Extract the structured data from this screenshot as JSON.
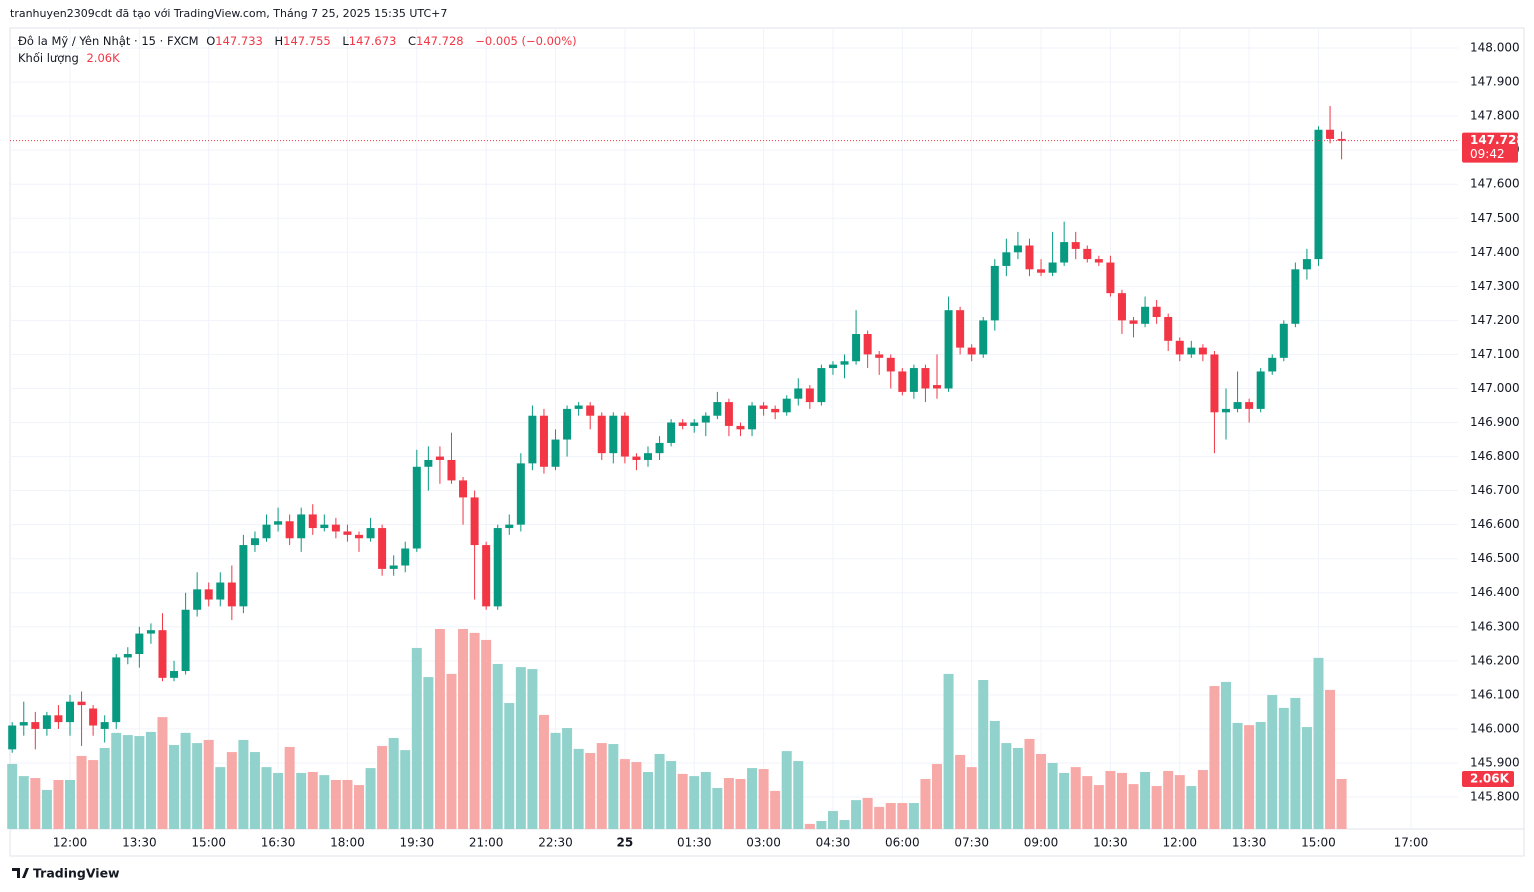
{
  "header": {
    "author_line": "tranhuyen2309cdt đã tạo với TradingView.com, Tháng 7 25, 2025 15:35 UTC+7",
    "symbol": "Đô la Mỹ / Yên Nhật · 15 · FXCM",
    "ohlc_letters": [
      "O",
      "H",
      "L",
      "C"
    ],
    "change": "−0.005 (−0.00%)",
    "volume_title": "Khối lượng",
    "brand": "TradingView"
  },
  "chart_data": {
    "type": "candlestick",
    "up_color": "#089981",
    "down_color": "#f23645",
    "up_volume_color": "#92d2cc",
    "down_volume_color": "#f7a9a7",
    "grid": true,
    "countdown": "09:42",
    "volume_label": "2.06K",
    "ylim": [
      145.706,
      148.053
    ],
    "yticks": [
      {
        "value": 148,
        "label": "148.000"
      },
      {
        "value": 147.9,
        "label": "147.900"
      },
      {
        "value": 147.8,
        "label": "147.800"
      },
      {
        "value": 147.7,
        "label": "147.700"
      },
      {
        "value": 147.6,
        "label": "147.600"
      },
      {
        "value": 147.5,
        "label": "147.500"
      },
      {
        "value": 147.4,
        "label": "147.400"
      },
      {
        "value": 147.3,
        "label": "147.300"
      },
      {
        "value": 147.2,
        "label": "147.200"
      },
      {
        "value": 147.1,
        "label": "147.100"
      },
      {
        "value": 147,
        "label": "147.000"
      },
      {
        "value": 146.9,
        "label": "146.900"
      },
      {
        "value": 146.8,
        "label": "146.800"
      },
      {
        "value": 146.7,
        "label": "146.700"
      },
      {
        "value": 146.6,
        "label": "146.600"
      },
      {
        "value": 146.5,
        "label": "146.500"
      },
      {
        "value": 146.4,
        "label": "146.400"
      },
      {
        "value": 146.3,
        "label": "146.300"
      },
      {
        "value": 146.2,
        "label": "146.200"
      },
      {
        "value": 146.1,
        "label": "146.100"
      },
      {
        "value": 146,
        "label": "146.000"
      },
      {
        "value": 145.9,
        "label": "145.900"
      },
      {
        "value": 145.8,
        "label": "145.800"
      }
    ],
    "xticks": [
      {
        "value": 5,
        "label": "12:00"
      },
      {
        "value": 11,
        "label": "13:30"
      },
      {
        "value": 17,
        "label": "15:00"
      },
      {
        "value": 23,
        "label": "16:30"
      },
      {
        "value": 29,
        "label": "18:00"
      },
      {
        "value": 35,
        "label": "19:30"
      },
      {
        "value": 41,
        "label": "21:00"
      },
      {
        "value": 47,
        "label": "22:30"
      },
      {
        "value": 53,
        "label": "25"
      },
      {
        "value": 59,
        "label": "01:30"
      },
      {
        "value": 65,
        "label": "03:00"
      },
      {
        "value": 71,
        "label": "04:30"
      },
      {
        "value": 77,
        "label": "06:00"
      },
      {
        "value": 83,
        "label": "07:30"
      },
      {
        "value": 89,
        "label": "09:00"
      },
      {
        "value": 95,
        "label": "10:30"
      },
      {
        "value": 101,
        "label": "12:00"
      },
      {
        "value": 107,
        "label": "13:30"
      },
      {
        "value": 113,
        "label": "15:00"
      },
      {
        "value": 121,
        "label": "17:00"
      }
    ],
    "open": [
      145.94,
      146.01,
      146.02,
      146.0,
      146.04,
      146.02,
      146.08,
      146.06,
      146.0,
      146.02,
      146.21,
      146.22,
      146.28,
      146.29,
      146.15,
      146.17,
      146.35,
      146.41,
      146.38,
      146.43,
      146.36,
      146.54,
      146.56,
      146.6,
      146.61,
      146.56,
      146.63,
      146.59,
      146.6,
      146.58,
      146.57,
      146.56,
      146.59,
      146.47,
      146.48,
      146.53,
      146.77,
      146.8,
      146.79,
      146.73,
      146.68,
      146.54,
      146.36,
      146.59,
      146.6,
      146.78,
      146.92,
      146.77,
      146.85,
      146.94,
      146.95,
      146.92,
      146.81,
      146.92,
      146.8,
      146.79,
      146.81,
      146.84,
      146.9,
      146.89,
      146.9,
      146.92,
      146.96,
      146.89,
      146.88,
      146.95,
      146.94,
      146.93,
      146.97,
      147.0,
      146.96,
      147.06,
      147.07,
      147.08,
      147.16,
      147.1,
      147.09,
      147.05,
      146.99,
      147.06,
      147.01,
      147.0,
      147.23,
      147.12,
      147.1,
      147.2,
      147.36,
      147.4,
      147.42,
      147.35,
      147.34,
      147.37,
      147.43,
      147.41,
      147.38,
      147.37,
      147.28,
      147.2,
      147.19,
      147.24,
      147.21,
      147.14,
      147.1,
      147.12,
      147.1,
      146.93,
      146.94,
      146.96,
      146.94,
      147.05,
      147.09,
      147.19,
      147.35,
      147.38,
      147.76,
      147.733
    ],
    "high": [
      146.02,
      146.08,
      146.05,
      146.05,
      146.07,
      146.1,
      146.11,
      146.07,
      146.04,
      146.22,
      146.24,
      146.3,
      146.31,
      146.34,
      146.2,
      146.4,
      146.46,
      146.43,
      146.46,
      146.48,
      146.57,
      146.58,
      146.63,
      146.65,
      146.63,
      146.65,
      146.66,
      146.63,
      146.62,
      146.6,
      146.58,
      146.62,
      146.6,
      146.51,
      146.55,
      146.82,
      146.83,
      146.83,
      146.87,
      146.74,
      146.7,
      146.55,
      146.6,
      146.63,
      146.81,
      146.95,
      146.94,
      146.88,
      146.95,
      146.96,
      146.96,
      146.93,
      146.93,
      146.93,
      146.81,
      146.83,
      146.86,
      146.91,
      146.91,
      146.91,
      146.93,
      146.99,
      146.97,
      146.9,
      146.96,
      146.96,
      146.95,
      146.98,
      147.03,
      147.01,
      147.07,
      147.08,
      147.1,
      147.23,
      147.17,
      147.11,
      147.1,
      147.06,
      147.07,
      147.07,
      147.1,
      147.27,
      147.24,
      147.13,
      147.21,
      147.38,
      147.44,
      147.46,
      147.44,
      147.38,
      147.46,
      147.49,
      147.46,
      147.42,
      147.39,
      147.39,
      147.29,
      147.21,
      147.27,
      147.26,
      147.22,
      147.15,
      147.14,
      147.13,
      147.11,
      147.0,
      147.05,
      146.97,
      147.06,
      147.1,
      147.2,
      147.37,
      147.41,
      147.77,
      147.83,
      147.755
    ],
    "low": [
      145.93,
      145.98,
      145.94,
      145.98,
      146.0,
      145.98,
      145.95,
      145.98,
      145.96,
      146.0,
      146.19,
      146.18,
      146.25,
      146.14,
      146.14,
      146.16,
      146.33,
      146.36,
      146.36,
      146.32,
      146.34,
      146.52,
      146.55,
      146.58,
      146.54,
      146.52,
      146.57,
      146.58,
      146.56,
      146.55,
      146.52,
      146.55,
      146.45,
      146.45,
      146.46,
      146.52,
      146.7,
      146.72,
      146.72,
      146.6,
      146.38,
      146.35,
      146.35,
      146.57,
      146.58,
      146.76,
      146.75,
      146.76,
      146.8,
      146.92,
      146.88,
      146.79,
      146.78,
      146.78,
      146.76,
      146.77,
      146.79,
      146.83,
      146.88,
      146.87,
      146.86,
      146.91,
      146.86,
      146.86,
      146.86,
      146.92,
      146.91,
      146.92,
      146.95,
      146.94,
      146.95,
      147.04,
      147.03,
      147.07,
      147.06,
      147.04,
      147.0,
      146.98,
      146.97,
      146.96,
      146.97,
      146.99,
      147.1,
      147.08,
      147.09,
      147.17,
      147.33,
      147.38,
      147.33,
      147.33,
      147.33,
      147.36,
      147.38,
      147.37,
      147.36,
      147.27,
      147.16,
      147.15,
      147.18,
      147.19,
      147.11,
      147.08,
      147.09,
      147.08,
      146.81,
      146.85,
      146.93,
      146.9,
      146.93,
      147.04,
      147.08,
      147.18,
      147.32,
      147.36,
      147.72,
      147.673
    ],
    "close": [
      146.01,
      146.02,
      146.0,
      146.04,
      146.02,
      146.08,
      146.07,
      146.01,
      146.02,
      146.21,
      146.22,
      146.28,
      146.29,
      146.15,
      146.17,
      146.35,
      146.41,
      146.38,
      146.43,
      146.36,
      146.54,
      146.56,
      146.6,
      146.61,
      146.56,
      146.63,
      146.59,
      146.6,
      146.58,
      146.57,
      146.56,
      146.59,
      146.47,
      146.48,
      146.53,
      146.77,
      146.79,
      146.79,
      146.73,
      146.68,
      146.54,
      146.36,
      146.59,
      146.6,
      146.78,
      146.92,
      146.77,
      146.85,
      146.94,
      146.95,
      146.92,
      146.81,
      146.92,
      146.8,
      146.79,
      146.81,
      146.84,
      146.9,
      146.89,
      146.9,
      146.92,
      146.96,
      146.89,
      146.88,
      146.95,
      146.94,
      146.93,
      146.97,
      147.0,
      146.96,
      147.06,
      147.07,
      147.08,
      147.16,
      147.1,
      147.09,
      147.05,
      146.99,
      147.06,
      147.0,
      147.0,
      147.23,
      147.12,
      147.1,
      147.2,
      147.36,
      147.4,
      147.42,
      147.35,
      147.34,
      147.37,
      147.43,
      147.41,
      147.38,
      147.37,
      147.28,
      147.2,
      147.19,
      147.24,
      147.21,
      147.14,
      147.1,
      147.12,
      147.1,
      146.93,
      146.94,
      146.96,
      146.94,
      147.05,
      147.09,
      147.19,
      147.35,
      147.38,
      147.76,
      147.733,
      147.728
    ],
    "volume": [
      2680,
      2180,
      2100,
      1610,
      2020,
      2020,
      3010,
      2840,
      3340,
      3960,
      3870,
      3830,
      4000,
      4610,
      3460,
      3960,
      3540,
      3670,
      2550,
      3170,
      3670,
      3170,
      2550,
      2310,
      3380,
      2310,
      2350,
      2220,
      2020,
      2020,
      1810,
      2510,
      3420,
      3750,
      3250,
      7460,
      6260,
      8240,
      6390,
      8240,
      8080,
      7790,
      6800,
      5190,
      6670,
      6590,
      4700,
      3960,
      4160,
      3300,
      3130,
      3540,
      3500,
      2880,
      2760,
      2350,
      3090,
      2800,
      2270,
      2180,
      2350,
      1690,
      2100,
      2060,
      2510,
      2470,
      1570,
      3210,
      2800,
      210,
      330,
      740,
      370,
      1190,
      1280,
      910,
      1070,
      1070,
      1070,
      2060,
      2680,
      6390,
      3050,
      2550,
      6140,
      4450,
      3540,
      3340,
      3710,
      3090,
      2720,
      2310,
      2550,
      2180,
      1810,
      2390,
      2310,
      1850,
      2350,
      1770,
      2390,
      2220,
      1770,
      2430,
      5890,
      6060,
      4370,
      4280,
      4410,
      5520,
      4990,
      5400,
      4200,
      7050,
      5730,
      2060
    ]
  }
}
